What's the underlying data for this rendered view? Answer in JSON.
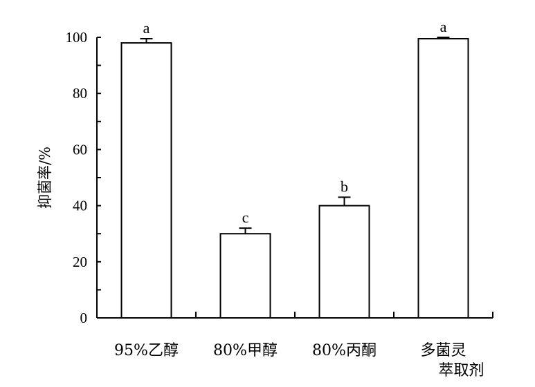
{
  "chart_data": {
    "type": "bar",
    "ylabel": "抑菌率/%",
    "xlabel": "",
    "ylim": [
      0,
      100
    ],
    "yticks": [
      0,
      20,
      40,
      60,
      80,
      100
    ],
    "categories": [
      [
        "95%乙醇"
      ],
      [
        "80%甲醇"
      ],
      [
        "80%丙酮"
      ],
      [
        "多菌灵",
        "萃取剂"
      ]
    ],
    "values": [
      98,
      30,
      40,
      99.5
    ],
    "errors": [
      1.5,
      2,
      3,
      0.5
    ],
    "significance": [
      "a",
      "c",
      "b",
      "a"
    ],
    "grid": false,
    "bar_fill": "#ffffff",
    "bar_stroke": "#000000"
  }
}
